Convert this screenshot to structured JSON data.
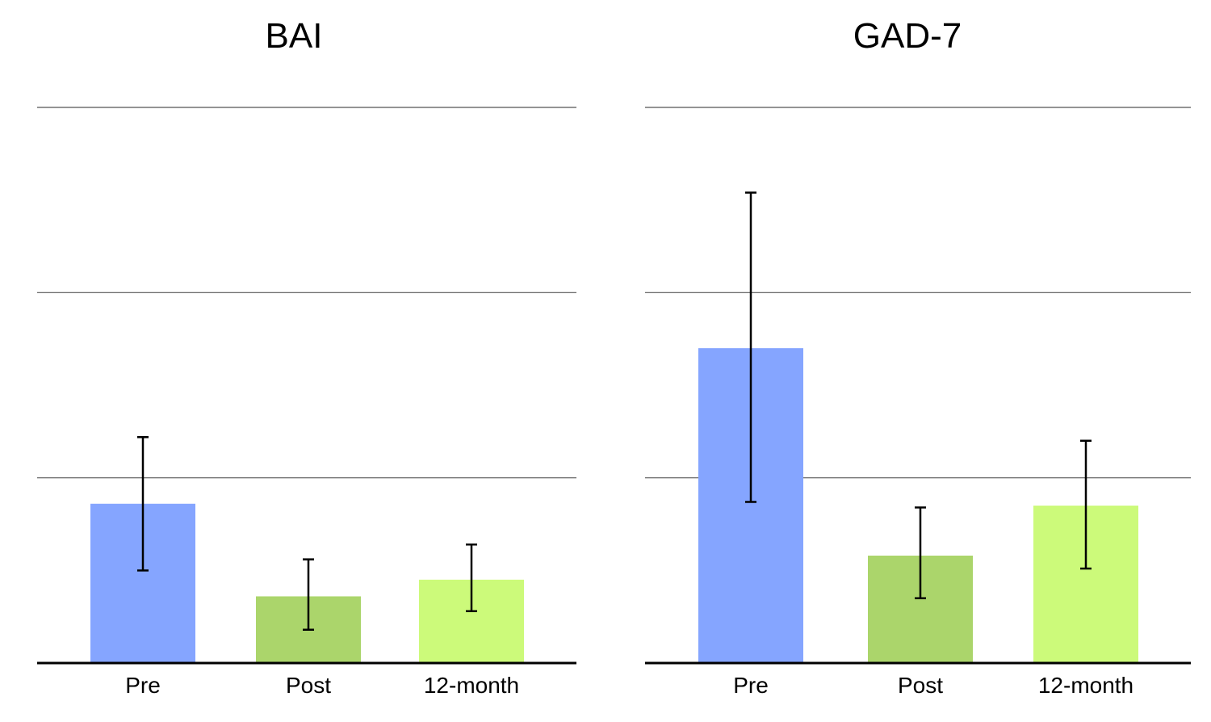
{
  "chart_data": [
    {
      "type": "bar",
      "title": "BAI",
      "categories": [
        "Pre",
        "Post",
        "12-month"
      ],
      "values": [
        8.6,
        3.6,
        4.5
      ],
      "error_low": [
        5.0,
        1.8,
        2.8
      ],
      "error_high": [
        12.2,
        5.6,
        6.4
      ],
      "colors": [
        "#85a5ff",
        "#abd56b",
        "#ccfa7a"
      ],
      "ylim": [
        0,
        30
      ],
      "gridlines": [
        10,
        20,
        30
      ],
      "xlabel": "",
      "ylabel": ""
    },
    {
      "type": "bar",
      "title": "GAD-7",
      "categories": [
        "Pre",
        "Post",
        "12-month"
      ],
      "values": [
        17.0,
        5.8,
        8.5
      ],
      "error_low": [
        8.7,
        3.5,
        5.1
      ],
      "error_high": [
        25.4,
        8.4,
        12.0
      ],
      "colors": [
        "#85a5ff",
        "#abd56b",
        "#ccfa7a"
      ],
      "ylim": [
        0,
        30
      ],
      "gridlines": [
        10,
        20,
        30
      ],
      "xlabel": "",
      "ylabel": ""
    }
  ]
}
